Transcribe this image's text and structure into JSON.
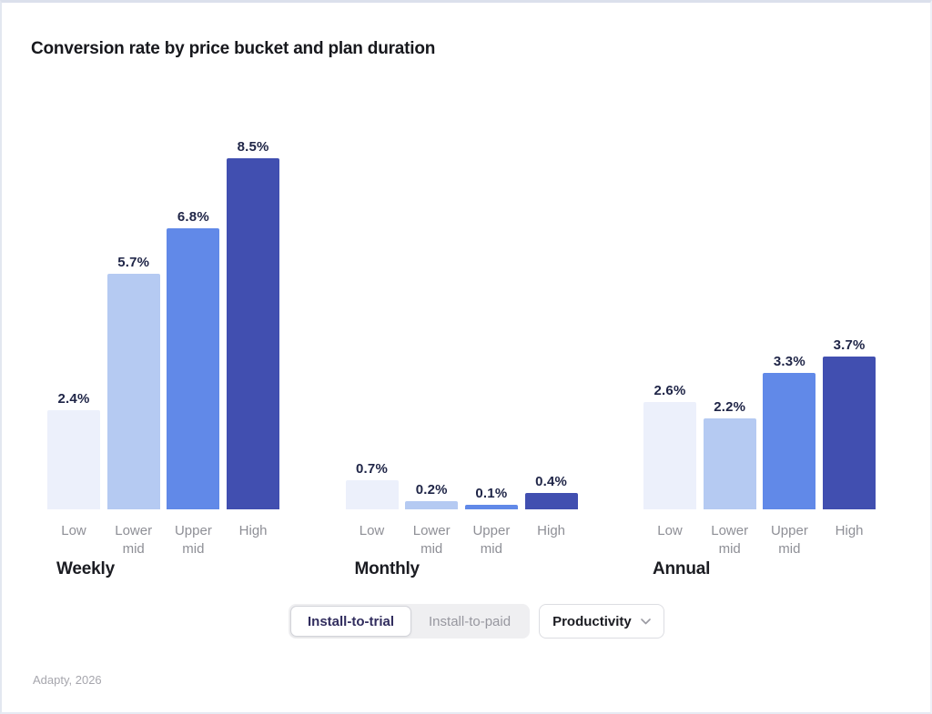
{
  "page": {
    "title": "Conversion rate by price bucket and plan duration",
    "footer": "Adapty, 2026"
  },
  "controls": {
    "tabs": [
      {
        "label": "Install-to-trial",
        "active": true
      },
      {
        "label": "Install-to-paid",
        "active": false
      }
    ],
    "dropdown": {
      "label": "Productivity",
      "icon": "chevron-down-icon"
    }
  },
  "colors": {
    "bar_palette": [
      "#ECF0FB",
      "#B5CAF2",
      "#6189E8",
      "#414FB0"
    ],
    "value_label": "#1F2547",
    "category_label": "#8E8F96",
    "active_tab_text": "#312D5E",
    "inactive_tab_text": "#97979F"
  },
  "chart_data": {
    "type": "bar",
    "title": "Conversion rate by price bucket and plan duration",
    "categories": [
      "Low",
      "Lower mid",
      "Upper mid",
      "High"
    ],
    "groups": [
      {
        "label": "Weekly",
        "values": [
          2.4,
          5.7,
          6.8,
          8.5
        ]
      },
      {
        "label": "Monthly",
        "values": [
          0.7,
          0.2,
          0.1,
          0.4
        ]
      },
      {
        "label": "Annual",
        "values": [
          2.6,
          2.2,
          3.3,
          3.7
        ]
      }
    ],
    "value_suffix": "%",
    "ylim": [
      0,
      9.4
    ],
    "grid": false,
    "legend": false,
    "xlabel": "",
    "ylabel": ""
  }
}
